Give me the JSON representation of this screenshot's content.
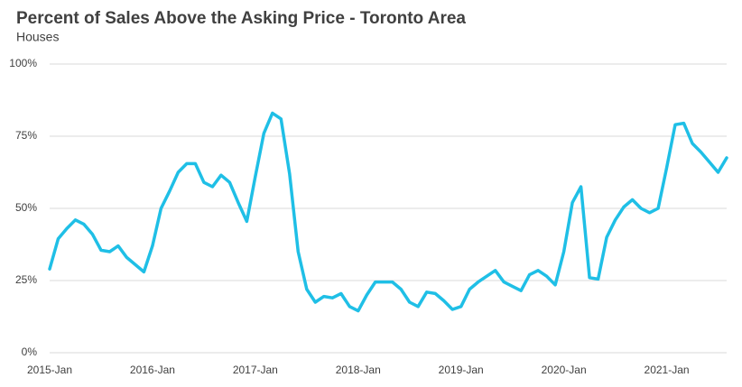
{
  "chart_data": {
    "type": "line",
    "title": "Percent of Sales Above the Asking Price - Toronto Area",
    "subtitle": "Houses",
    "categories": [
      "2015-Jan",
      null,
      null,
      null,
      null,
      null,
      null,
      null,
      null,
      null,
      null,
      null,
      "2016-Jan",
      null,
      null,
      null,
      null,
      null,
      null,
      null,
      null,
      null,
      null,
      null,
      "2017-Jan",
      null,
      null,
      null,
      null,
      null,
      null,
      null,
      null,
      null,
      null,
      null,
      "2018-Jan",
      null,
      null,
      null,
      null,
      null,
      null,
      null,
      null,
      null,
      null,
      null,
      "2019-Jan",
      null,
      null,
      null,
      null,
      null,
      null,
      null,
      null,
      null,
      null,
      null,
      "2020-Jan",
      null,
      null,
      null,
      null,
      null,
      null,
      null,
      null,
      null,
      null,
      null,
      "2021-Jan",
      null,
      null,
      null,
      null,
      null,
      null,
      null
    ],
    "values": [
      29,
      39.5,
      43,
      46,
      44.5,
      41,
      35.5,
      35,
      37,
      33,
      30.5,
      28,
      37,
      50,
      56,
      62.5,
      65.5,
      65.5,
      59,
      57.5,
      61.5,
      59,
      52,
      45.5,
      61,
      76,
      83,
      81,
      62,
      35,
      22,
      17.5,
      19.5,
      19,
      20.5,
      16,
      14.5,
      20,
      24.5,
      24.5,
      24.5,
      22,
      17.5,
      16,
      21,
      20.5,
      18,
      15,
      16,
      22,
      24.5,
      26.5,
      28.5,
      24.5,
      23,
      21.5,
      27,
      28.5,
      26.5,
      23.5,
      35,
      52,
      57.5,
      26,
      25.5,
      40,
      46,
      50.5,
      53,
      50,
      48.5,
      50,
      64,
      79,
      79.5,
      72.5,
      69.5,
      66,
      62.5,
      67.5
    ],
    "color": "#1fbfe6",
    "ylim": [
      0,
      100
    ],
    "yticks": [
      {
        "value": 0,
        "label": "0%"
      },
      {
        "value": 25,
        "label": "25%"
      },
      {
        "value": 50,
        "label": "50%"
      },
      {
        "value": 75,
        "label": "75%"
      },
      {
        "value": 100,
        "label": "100%"
      }
    ],
    "grid": true
  }
}
